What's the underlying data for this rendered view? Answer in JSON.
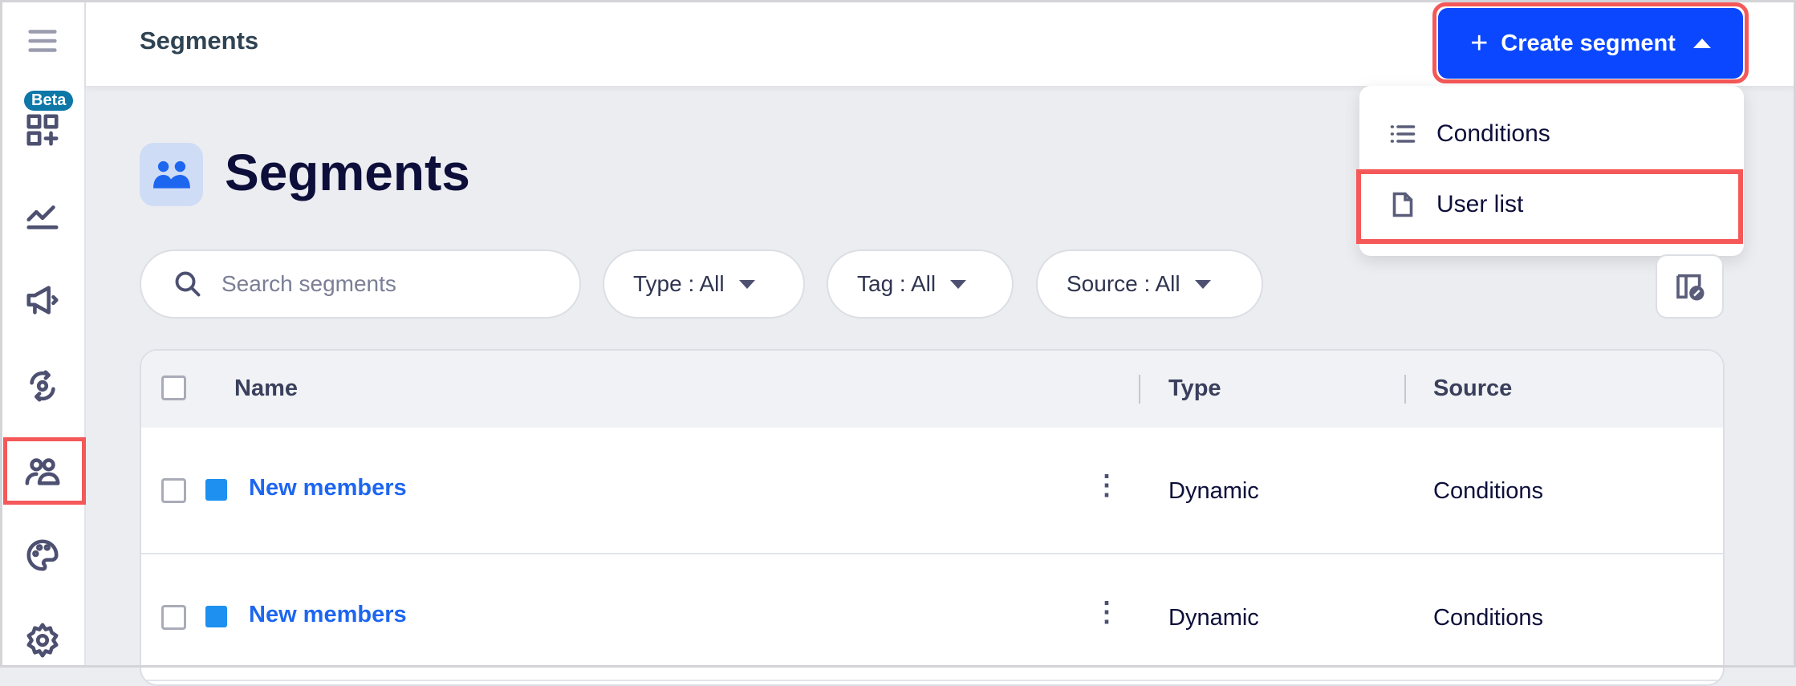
{
  "header": {
    "title": "Segments",
    "create_label": "Create segment"
  },
  "sidebar": {
    "beta_badge": "Beta",
    "items": [
      "menu-icon",
      "dashboard-add-icon",
      "analytics-icon",
      "campaigns-icon",
      "automation-icon",
      "segments-icon",
      "palette-icon",
      "settings-icon"
    ],
    "selected": "segments-icon"
  },
  "create_menu": {
    "items": [
      {
        "label": "Conditions",
        "icon": "list-icon"
      },
      {
        "label": "User list",
        "icon": "file-icon"
      }
    ],
    "highlighted": "User list"
  },
  "page": {
    "title": "Segments"
  },
  "filters": {
    "search_placeholder": "Search segments",
    "type": "Type : All",
    "tag": "Tag : All",
    "source": "Source : All"
  },
  "table": {
    "columns": [
      "Name",
      "Type",
      "Source"
    ],
    "rows": [
      {
        "name": "New members",
        "type": "Dynamic",
        "source": "Conditions",
        "color": "#1d90f0"
      },
      {
        "name": "New members",
        "type": "Dynamic",
        "source": "Conditions",
        "color": "#1d90f0"
      }
    ]
  },
  "colors": {
    "primary": "#0a47ff",
    "highlight": "#f55858",
    "link": "#1d66f0"
  }
}
